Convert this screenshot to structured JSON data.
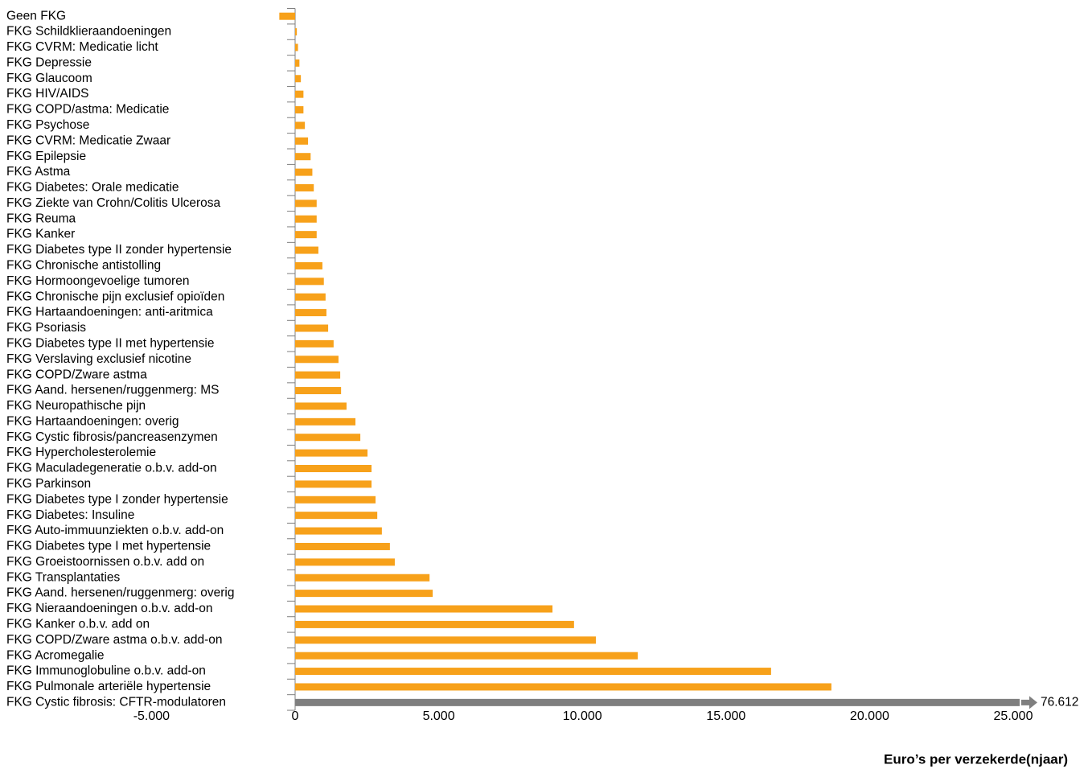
{
  "chart_data": {
    "type": "hbar",
    "x_label": "Euro’s per verzekerde(njaar)",
    "categories": [
      "Geen FKG",
      "FKG Schildklieraandoeningen",
      "FKG CVRM: Medicatie licht",
      "FKG Depressie",
      "FKG Glaucoom",
      "FKG HIV/AIDS",
      "FKG COPD/astma: Medicatie",
      "FKG Psychose",
      "FKG CVRM: Medicatie Zwaar",
      "FKG Epilepsie",
      "FKG Astma",
      "FKG Diabetes: Orale medicatie",
      "FKG Ziekte van Crohn/Colitis Ulcerosa",
      "FKG Reuma",
      "FKG Kanker",
      "FKG Diabetes type II zonder hypertensie",
      "FKG Chronische antistolling",
      "FKG Hormoongevoelige tumoren",
      "FKG Chronische pijn exclusief opioïden",
      "FKG Hartaandoeningen: anti-aritmica",
      "FKG Psoriasis",
      "FKG Diabetes type II met hypertensie",
      "FKG Verslaving exclusief nicotine",
      "FKG COPD/Zware astma",
      "FKG Aand. hersenen/ruggenmerg: MS",
      "FKG Neuropathische pijn",
      "FKG Hartaandoeningen: overig",
      "FKG Cystic fibrosis/pancreasenzymen",
      "FKG Hypercholesterolemie",
      "FKG Maculadegeneratie o.b.v. add-on",
      "FKG Parkinson",
      "FKG Diabetes type I zonder hypertensie",
      "FKG Diabetes: Insuline",
      "FKG Auto-immuunziekten o.b.v. add-on",
      "FKG Diabetes type I met hypertensie",
      "FKG Groeistoornissen o.b.v. add on",
      "FKG Transplantaties",
      "FKG Aand. hersenen/ruggenmerg: overig",
      "FKG Nieraandoeningen o.b.v. add-on",
      "FKG Kanker o.b.v. add on",
      "FKG COPD/Zware astma o.b.v. add-on",
      "FKG Acromegalie",
      "FKG Immunoglobuline o.b.v. add-on",
      "FKG Pulmonale arteriële hypertensie",
      "FKG Cystic fibrosis: CFTR-modulatoren"
    ],
    "values": [
      -550,
      60,
      100,
      150,
      200,
      290,
      290,
      340,
      450,
      540,
      600,
      650,
      750,
      750,
      750,
      810,
      950,
      1000,
      1060,
      1090,
      1150,
      1340,
      1510,
      1570,
      1600,
      1790,
      2100,
      2270,
      2520,
      2660,
      2660,
      2800,
      2860,
      3020,
      3300,
      3470,
      4680,
      4790,
      8960,
      9710,
      10470,
      11930,
      16570,
      18670,
      76612
    ],
    "value_labels": [
      null,
      null,
      null,
      null,
      null,
      null,
      null,
      null,
      null,
      null,
      null,
      null,
      null,
      null,
      null,
      null,
      null,
      null,
      null,
      null,
      null,
      null,
      null,
      null,
      null,
      null,
      null,
      null,
      null,
      null,
      null,
      null,
      null,
      null,
      null,
      null,
      null,
      null,
      null,
      null,
      null,
      null,
      null,
      null,
      "76.612"
    ],
    "color": "#f7a11a",
    "overflow_color": "#7f7f7f",
    "xlim": [
      -5000,
      25000
    ],
    "xticks": [
      {
        "value": -5000,
        "label": "-5.000"
      },
      0,
      {
        "value": 5000,
        "label": "5.000"
      },
      {
        "value": 10000,
        "label": "10.000"
      },
      {
        "value": 15000,
        "label": "15.000"
      },
      {
        "value": 20000,
        "label": "20.000"
      },
      {
        "value": 25000,
        "label": "25.000"
      }
    ]
  }
}
